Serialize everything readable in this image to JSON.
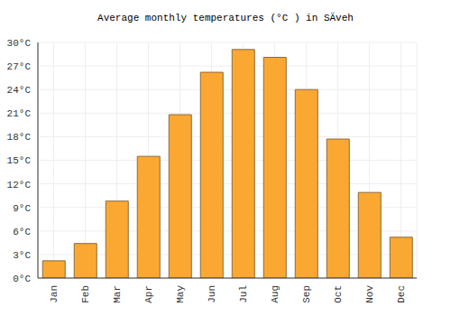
{
  "chart_data": {
    "type": "bar",
    "title": "Average monthly temperatures (°C ) in SÄveh",
    "categories": [
      "Jan",
      "Feb",
      "Mar",
      "Apr",
      "May",
      "Jun",
      "Jul",
      "Aug",
      "Sep",
      "Oct",
      "Nov",
      "Dec"
    ],
    "values": [
      2.2,
      4.4,
      9.8,
      15.5,
      20.8,
      26.2,
      29.1,
      28.1,
      24.0,
      17.7,
      10.9,
      5.2
    ],
    "color": "#fba832",
    "ylim": [
      0,
      30
    ],
    "yticks": [
      {
        "value": 0,
        "label": "0°C"
      },
      {
        "value": 3,
        "label": "3°C"
      },
      {
        "value": 6,
        "label": "6°C"
      },
      {
        "value": 9,
        "label": "9°C"
      },
      {
        "value": 12,
        "label": "12°C"
      },
      {
        "value": 15,
        "label": "15°C"
      },
      {
        "value": 18,
        "label": "18°C"
      },
      {
        "value": 21,
        "label": "21°C"
      },
      {
        "value": 24,
        "label": "24°C"
      },
      {
        "value": 27,
        "label": "27°C"
      },
      {
        "value": 30,
        "label": "30°C"
      }
    ],
    "grid": true
  }
}
